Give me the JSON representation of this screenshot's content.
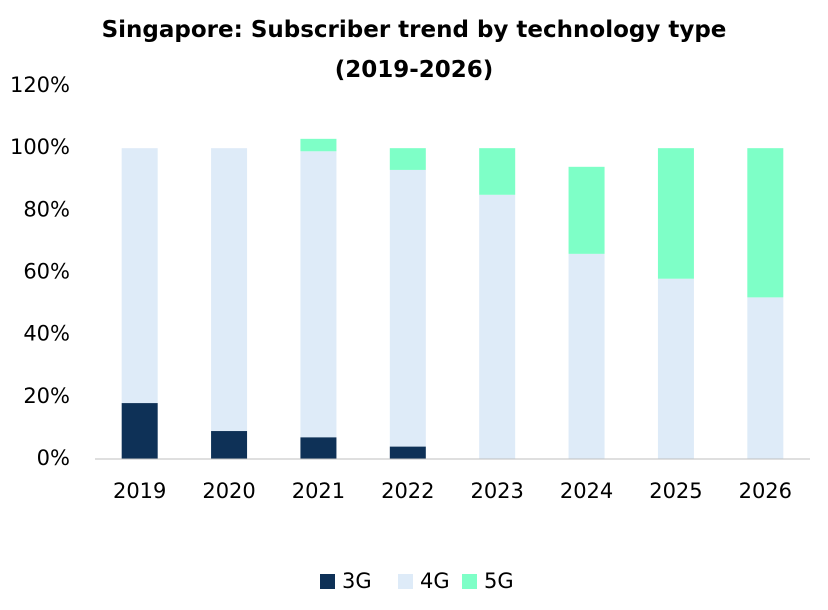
{
  "chart_data": {
    "type": "stacked_bar",
    "title": "Singapore: Subscriber trend by technology type (2019-2026)",
    "categories": [
      "2019",
      "2020",
      "2021",
      "2022",
      "2023",
      "2024",
      "2025",
      "2026"
    ],
    "series": [
      {
        "name": "3G",
        "color": "#0e3157",
        "values": [
          18,
          9,
          7,
          4,
          0,
          0,
          0,
          0
        ]
      },
      {
        "name": "4G",
        "color": "#deebf8",
        "values": [
          82,
          91,
          92,
          89,
          85,
          66,
          58,
          52
        ]
      },
      {
        "name": "5G",
        "color": "#7effc7",
        "values": [
          0,
          0,
          4,
          7,
          15,
          28,
          42,
          48
        ]
      }
    ],
    "ylim": [
      0,
      120
    ],
    "yticks": [
      {
        "value": 0,
        "label": "0%"
      },
      {
        "value": 20,
        "label": "20%"
      },
      {
        "value": 40,
        "label": "40%"
      },
      {
        "value": 60,
        "label": "60%"
      },
      {
        "value": 80,
        "label": "80%"
      },
      {
        "value": 100,
        "label": "100%"
      },
      {
        "value": 120,
        "label": "120%"
      }
    ],
    "grid": false
  }
}
